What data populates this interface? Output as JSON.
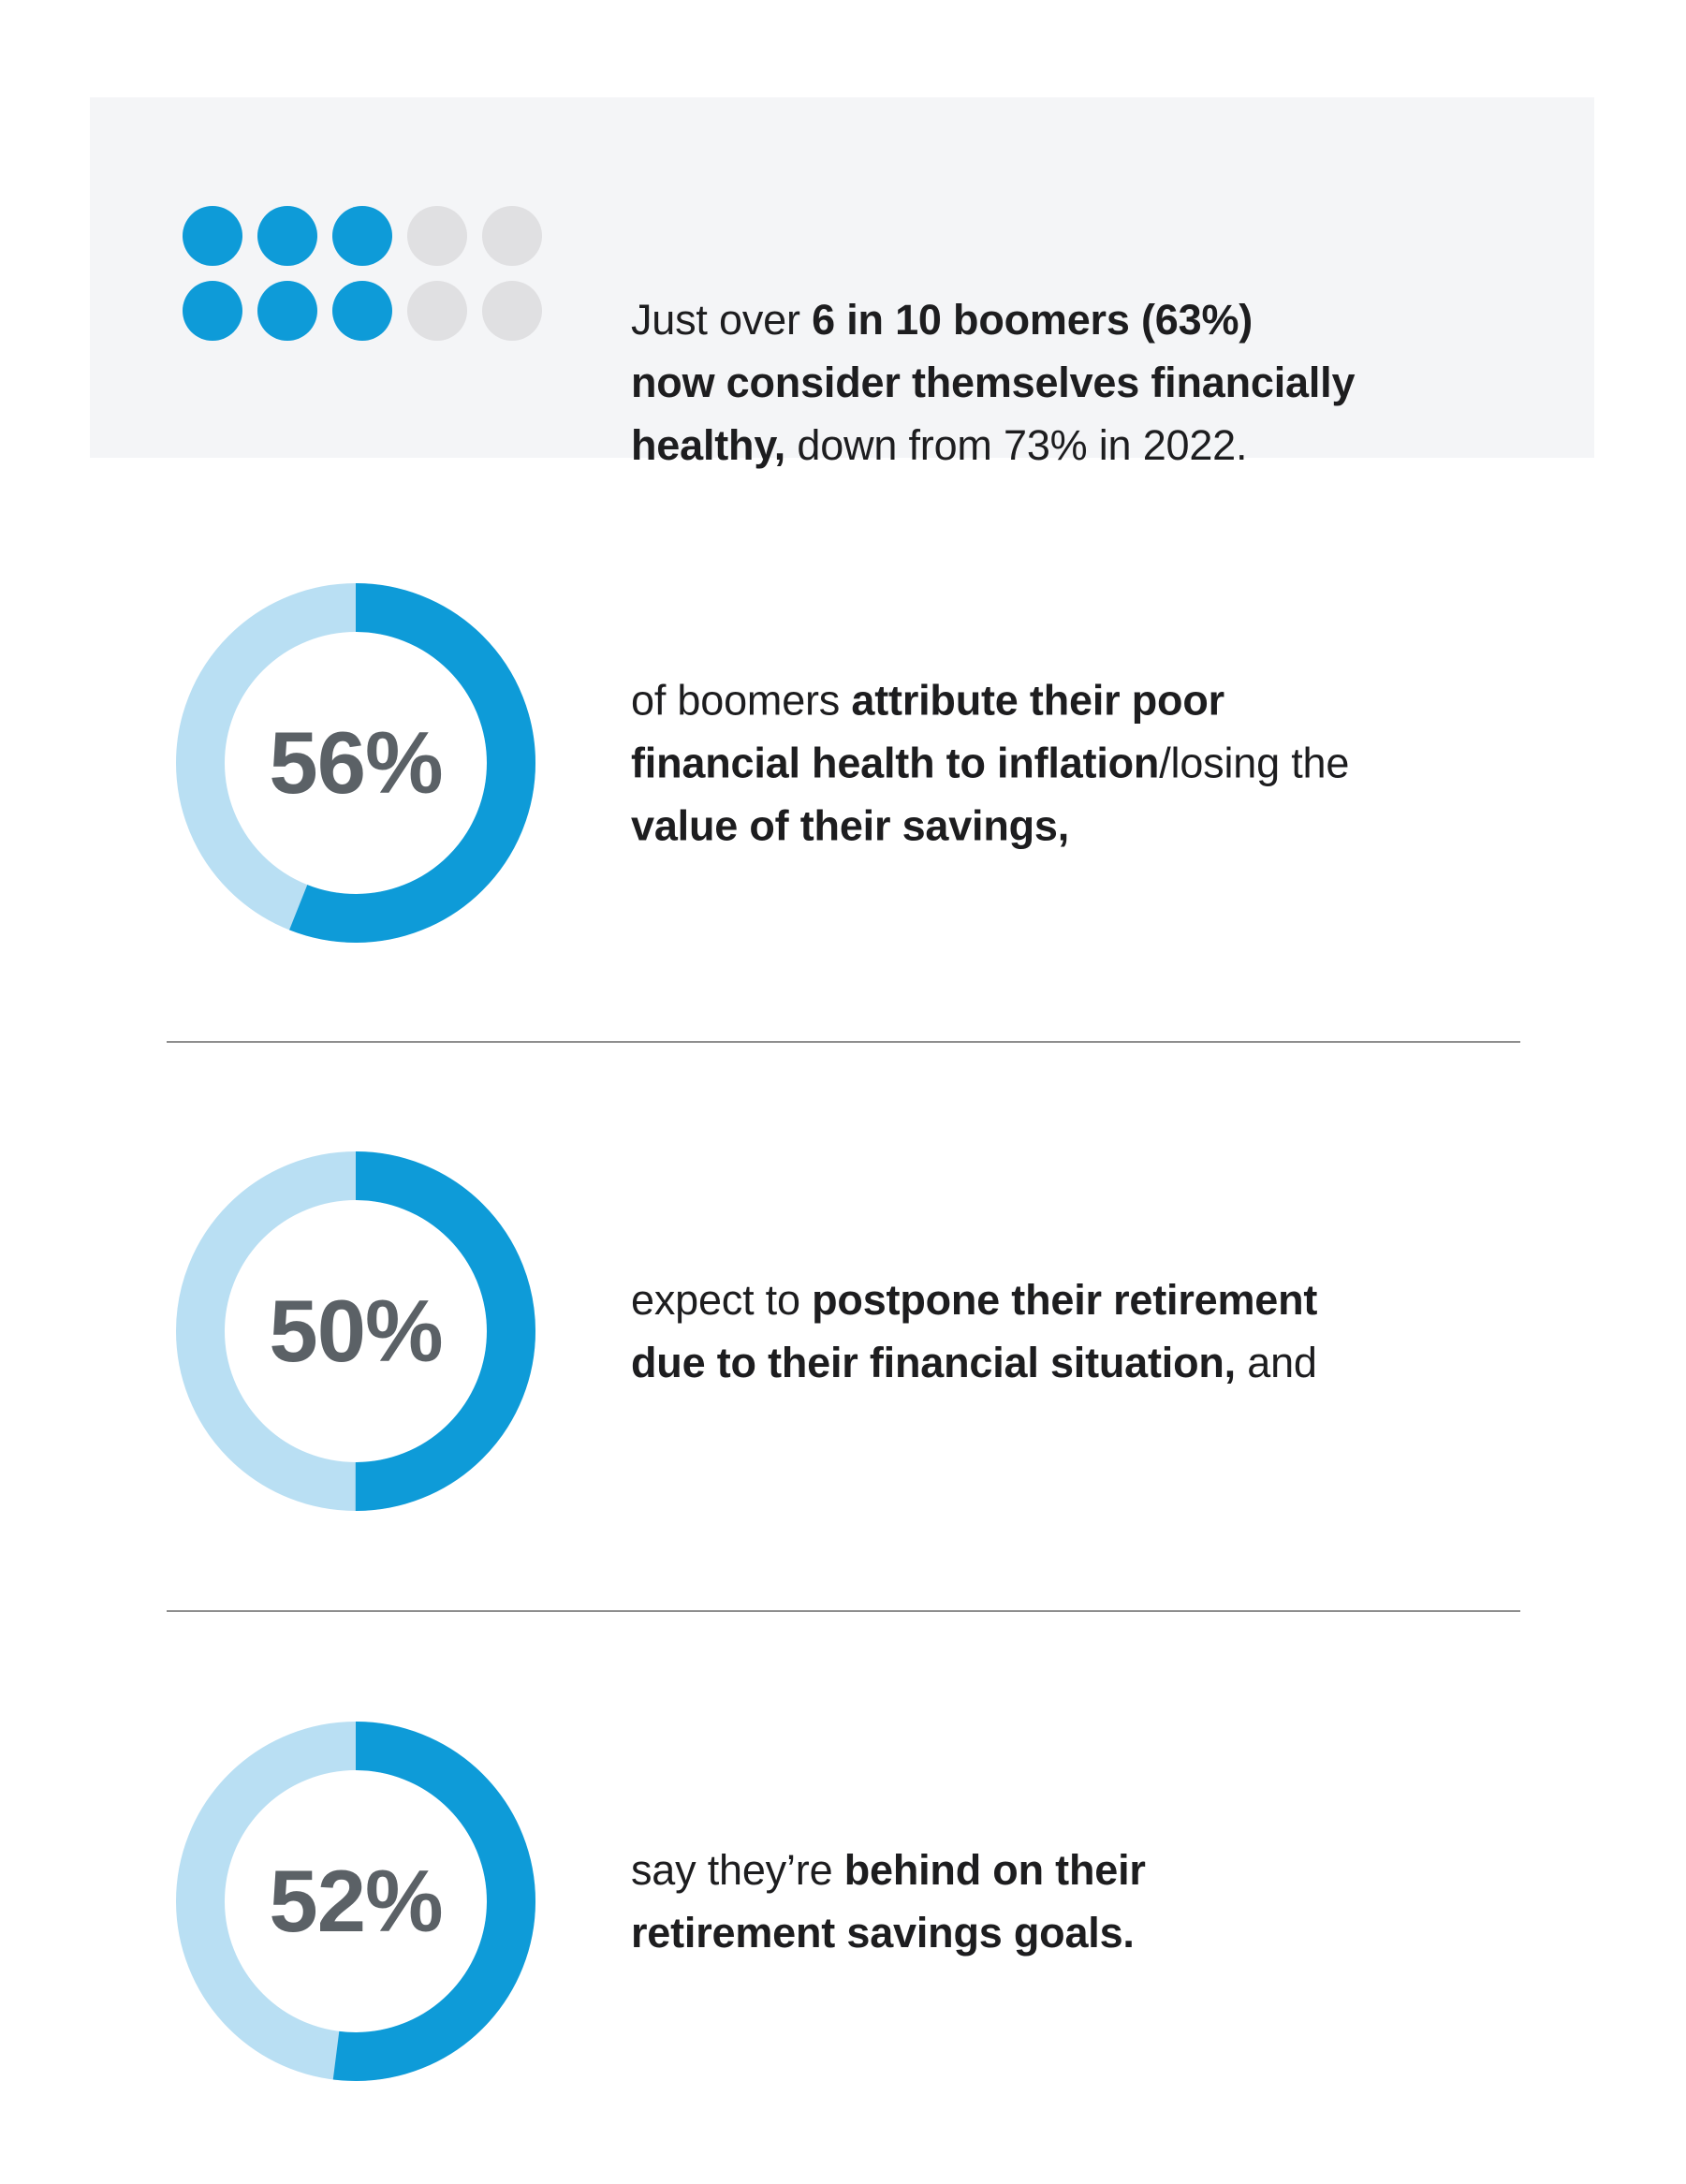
{
  "header": {
    "dot_grid": {
      "rows": 2,
      "cols": 5,
      "filled_units": 6,
      "total_units": 10,
      "pattern": [
        [
          1,
          1,
          1,
          0,
          0
        ],
        [
          1,
          1,
          1,
          0,
          0
        ]
      ],
      "filled_color": "#0E9BD8",
      "empty_color": "#E0E0E2"
    },
    "line1_regular": "Just over ",
    "line1_bold": "6 in 10 boomers (63%)",
    "line2_bold": "now consider themselves financially",
    "line3_bold": "healthy,",
    "line3_regular": " down from 73% in 2022."
  },
  "sections": [
    {
      "id": "inflation",
      "percent_label": "56%",
      "value": 56,
      "line1_regular": "of boomers ",
      "line1_bold": "attribute their poor",
      "line2_bold": "financial health to inflation",
      "line2_regular": "/losing the",
      "line3_bold": "value of their savings,",
      "line3_regular": ""
    },
    {
      "id": "postpone",
      "percent_label": "50%",
      "value": 50,
      "line1_regular": "expect to ",
      "line1_bold": "postpone their retirement",
      "line2_bold": "due to their financial situation,",
      "line2_regular": " and"
    },
    {
      "id": "behind",
      "percent_label": "52%",
      "value": 52,
      "line1_regular": "say they’re ",
      "line1_bold": "behind on their",
      "line2_bold": "retirement savings goals.",
      "line2_regular": ""
    }
  ],
  "colors": {
    "donut_filled": "#0E9BD8",
    "donut_remainder": "#B9DFF3",
    "percent_text": "#5B6166",
    "body_text": "#1D1D1F",
    "header_box_bg": "#F4F5F7",
    "divider": "#8E8E8E"
  },
  "chart_data": [
    {
      "type": "pie",
      "subtype": "pictograph",
      "title": "Boomers who consider themselves financially healthy",
      "filled_units": 6,
      "total_units": 10,
      "value_pct": 63,
      "prior_value_pct": 73,
      "prior_year": "2022",
      "caption": "Just over 6 in 10 boomers (63%) now consider themselves financially healthy, down from 73% in 2022."
    },
    {
      "type": "pie",
      "subtype": "donut",
      "values": [
        56,
        44
      ],
      "labels": [
        "attribute their poor financial health to inflation/losing the value of their savings",
        "other"
      ],
      "center_label": "56%",
      "caption": "of boomers attribute their poor financial health to inflation/losing the value of their savings,"
    },
    {
      "type": "pie",
      "subtype": "donut",
      "values": [
        50,
        50
      ],
      "labels": [
        "expect to postpone their retirement due to their financial situation",
        "other"
      ],
      "center_label": "50%",
      "caption": "expect to postpone their retirement due to their financial situation, and"
    },
    {
      "type": "pie",
      "subtype": "donut",
      "values": [
        52,
        48
      ],
      "labels": [
        "say they're behind on their retirement savings goals",
        "other"
      ],
      "center_label": "52%",
      "caption": "say they're behind on their retirement savings goals."
    }
  ]
}
